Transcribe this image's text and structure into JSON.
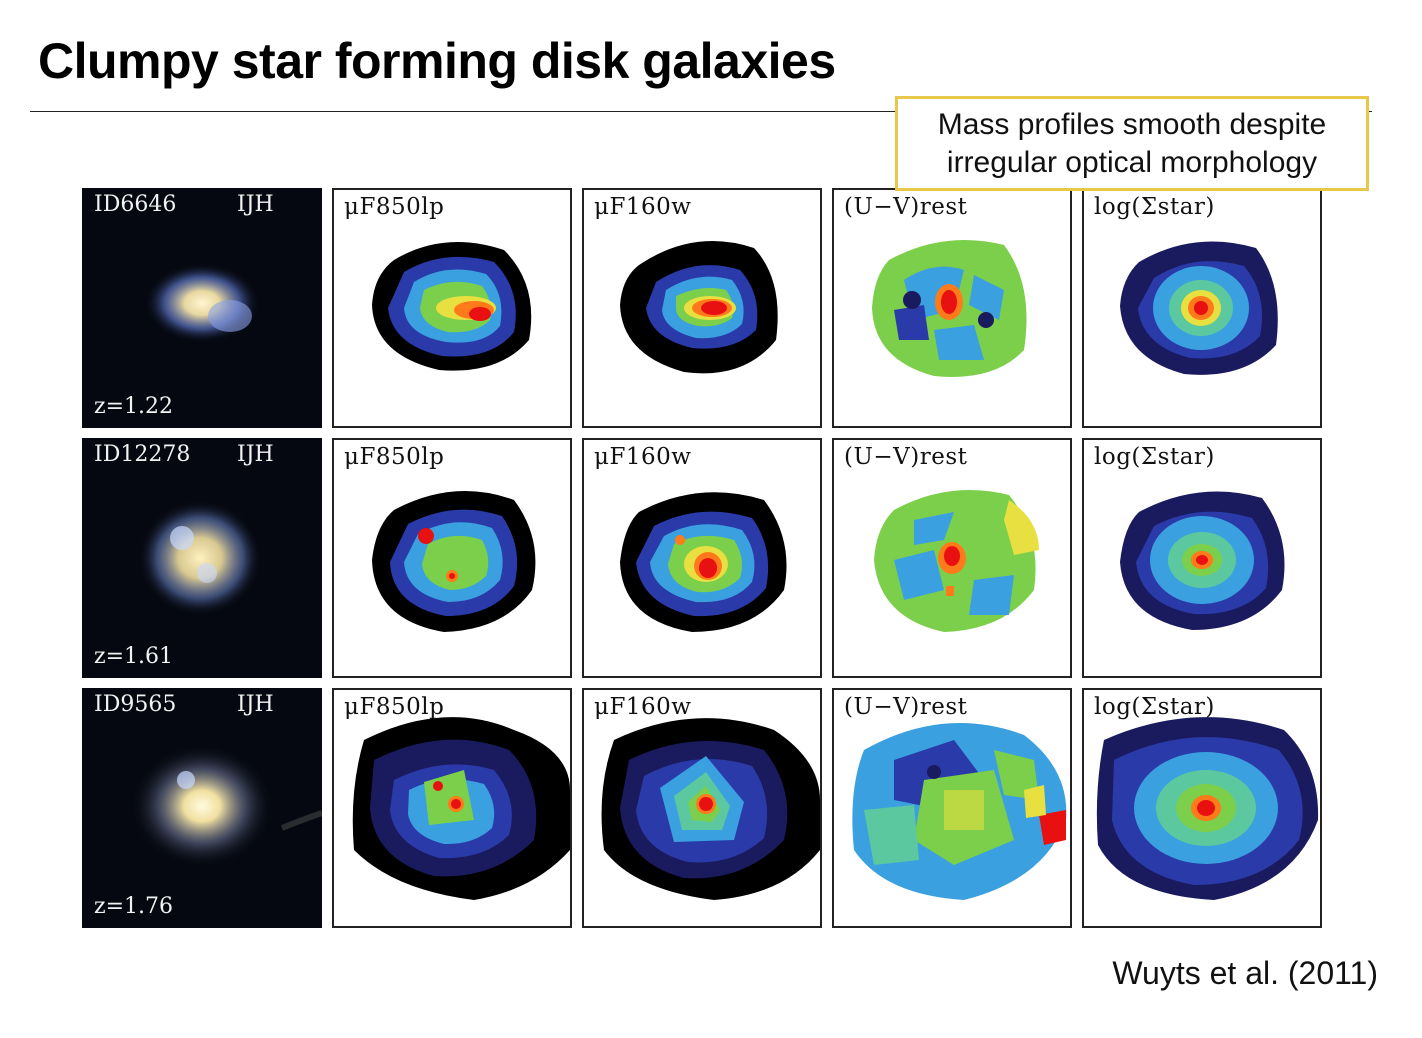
{
  "slide": {
    "title": "Clumpy star forming disk galaxies",
    "callout": {
      "line1": "Mass profiles smooth despite",
      "line2": "irregular optical morphology"
    },
    "citation": "Wuyts et al. (2011)"
  },
  "galaxies": [
    {
      "id": "ID6646",
      "bands": "IJH",
      "redshift": "z=1.22",
      "maps": [
        "μF850lp",
        "μF160w",
        "(U−V)rest",
        "log(Σstar)"
      ]
    },
    {
      "id": "ID12278",
      "bands": "IJH",
      "redshift": "z=1.61",
      "maps": [
        "μF850lp",
        "μF160w",
        "(U−V)rest",
        "log(Σstar)"
      ]
    },
    {
      "id": "ID9565",
      "bands": "IJH",
      "redshift": "z=1.76",
      "maps": [
        "μF850lp",
        "μF160w",
        "(U−V)rest",
        "log(Σstar)"
      ]
    }
  ],
  "colors": {
    "callout_border": "#e8c84a",
    "map_scale": [
      "#000000",
      "#1a1a5e",
      "#2a3aa8",
      "#3aa0e0",
      "#5cc8a0",
      "#7ccf4a",
      "#e8e040",
      "#ff7a1a",
      "#e81010"
    ]
  }
}
